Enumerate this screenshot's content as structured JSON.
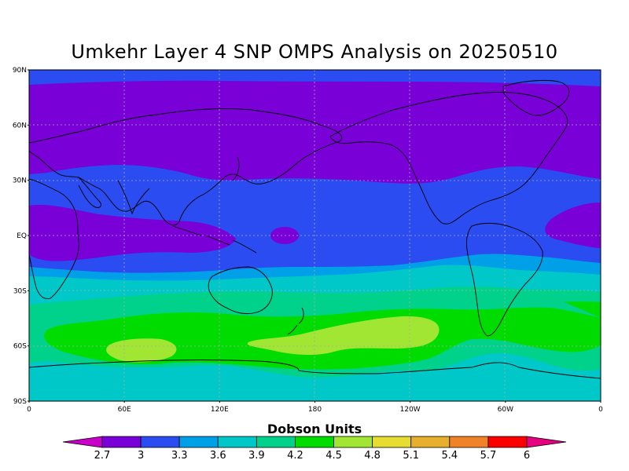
{
  "title": "Umkehr Layer 4 SNP OMPS Analysis on 20250510",
  "map": {
    "lat_ticks": [
      "90N",
      "60N",
      "30N",
      "EQ",
      "30S",
      "60S",
      "90S"
    ],
    "lon_ticks": [
      "0",
      "60E",
      "120E",
      "180",
      "120W",
      "60W",
      "0"
    ]
  },
  "colorbar": {
    "title": "Dobson Units",
    "levels": [
      "2.7",
      "3",
      "3.3",
      "3.6",
      "3.9",
      "4.2",
      "4.5",
      "4.8",
      "5.1",
      "5.4",
      "5.7",
      "6"
    ],
    "colors": [
      "#c800c8",
      "#7a00d8",
      "#2a4cf0",
      "#00a0e8",
      "#00c8c8",
      "#00d28c",
      "#00dc00",
      "#a0e632",
      "#e6dc32",
      "#e6af2d",
      "#f08228",
      "#fa0000",
      "#e6007f"
    ]
  },
  "colors": {
    "band_purple": "#7a00d8",
    "band_blue": "#2a4cf0",
    "band_lightblue": "#00a0e8",
    "band_cyan": "#00c8c8",
    "band_teal": "#00d28c",
    "band_green": "#00dc00",
    "band_lime": "#a0e632"
  }
}
